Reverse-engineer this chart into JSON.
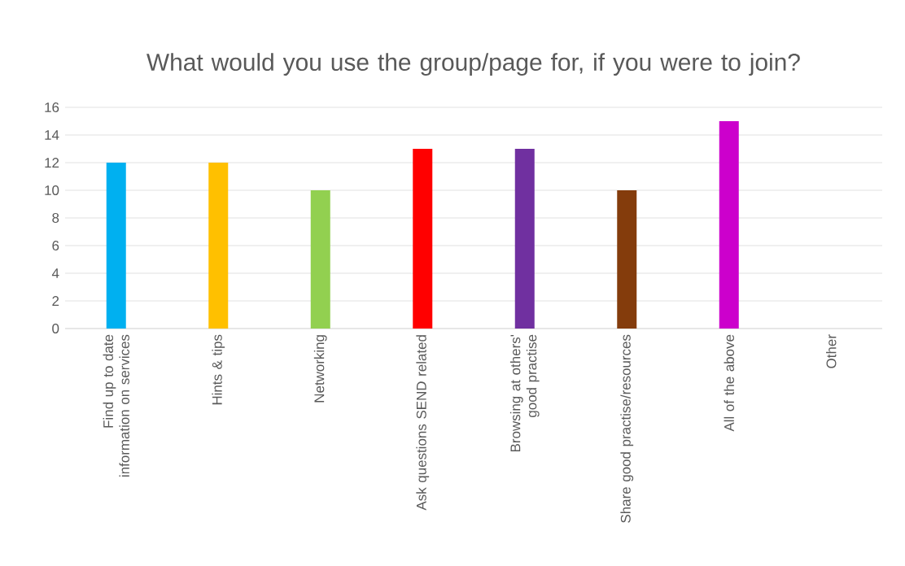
{
  "chart_data": {
    "type": "bar",
    "title": "What would you use the group/page for, if you were to join?",
    "categories": [
      "Find up to date information on services",
      "Hints & tips",
      "Networking",
      "Ask questions SEND related",
      "Browsing at others' good practise",
      "Share good practise/resources",
      "All of the above",
      "Other"
    ],
    "values": [
      12,
      12,
      10,
      13,
      13,
      10,
      15,
      0
    ],
    "colors": [
      "#00b0f0",
      "#ffc000",
      "#92d050",
      "#ff0000",
      "#7030a0",
      "#843c0c",
      "#cc00cc",
      "#808080"
    ],
    "ylim": [
      0,
      16
    ],
    "yticks": [
      0,
      2,
      4,
      6,
      8,
      10,
      12,
      14,
      16
    ],
    "grid": "y"
  }
}
